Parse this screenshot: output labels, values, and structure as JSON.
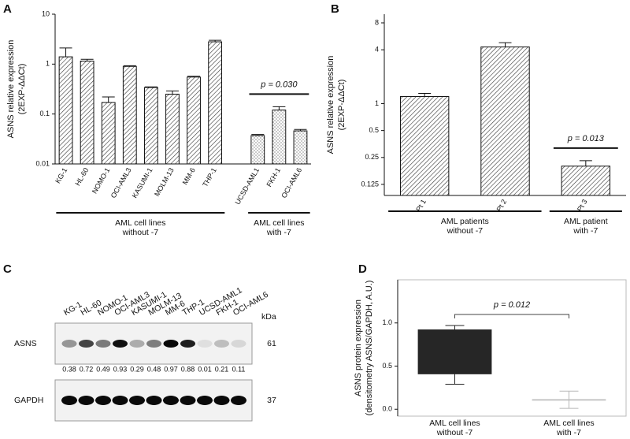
{
  "chart_data": [
    {
      "type": "bar",
      "panel_label": "A",
      "yscale": "log",
      "ylabel": [
        "ASNS relative expression",
        "(2EXP-ΔΔCt)"
      ],
      "categories": [
        "KG-1",
        "HL-60",
        "NOMO-1",
        "OCI-AML3",
        "KASUMI-1",
        "MOLM-13",
        "MM-6",
        "THP-1",
        null,
        "UCSD-AML1",
        "FKH-1",
        "OCI-AML6"
      ],
      "values": [
        1.4,
        1.15,
        0.17,
        0.9,
        0.34,
        0.25,
        0.55,
        2.8,
        null,
        0.037,
        0.12,
        0.046
      ],
      "errors": [
        0.7,
        0.1,
        0.05,
        0.03,
        0.01,
        0.04,
        0.02,
        0.2,
        null,
        0.002,
        0.02,
        0.003
      ],
      "ylim": [
        0.01,
        10
      ],
      "yticks": [
        0.01,
        0.1,
        1,
        10
      ],
      "groups": [
        {
          "label": [
            "AML cell lines",
            "without -7"
          ],
          "span": [
            0,
            7
          ],
          "fill": "hatch"
        },
        {
          "label": [
            "AML cell lines",
            "with -7"
          ],
          "span": [
            9,
            11
          ],
          "fill": "dots"
        }
      ],
      "annotation": {
        "text": "p = 0.030",
        "span": [
          9,
          11
        ]
      }
    },
    {
      "type": "bar",
      "panel_label": "B",
      "yscale": "log",
      "ylabel": [
        "ASNS relative expression",
        "(2EXP-ΔΔCt)"
      ],
      "categories": [
        "Pt 1",
        "Pt 2",
        "Pt 3"
      ],
      "values": [
        1.2,
        4.3,
        0.2
      ],
      "errors": [
        0.1,
        0.5,
        0.03
      ],
      "ylim": [
        0.094,
        10
      ],
      "yticks": [
        0.125,
        0.25,
        0.5,
        1,
        4,
        8
      ],
      "groups": [
        {
          "label": [
            "AML patients",
            "without -7"
          ],
          "span": [
            0,
            1
          ],
          "fill": "hatch"
        },
        {
          "label": [
            "AML patient",
            "with -7"
          ],
          "span": [
            2,
            2
          ],
          "fill": "hatch"
        }
      ],
      "annotation": {
        "text": "p = 0.013",
        "span": [
          2,
          2
        ]
      }
    },
    {
      "type": "box",
      "panel_label": "D",
      "ylabel": [
        "ASNS protein expression",
        "(densitometry ASNS/GAPDH, A.U.)"
      ],
      "categories": [
        [
          "AML cell lines",
          "without -7"
        ],
        [
          "AML cell lines",
          "with -7"
        ]
      ],
      "boxes": [
        {
          "min": 0.29,
          "q1": 0.41,
          "median": 0.605,
          "q3": 0.92,
          "max": 0.97
        },
        {
          "min": 0.01,
          "q1": 0.11,
          "median": 0.11,
          "q3": 0.11,
          "max": 0.21
        }
      ],
      "colors": [
        "#262626",
        "#b8b8b8"
      ],
      "ylim": [
        -0.08,
        1.5
      ],
      "yticks": [
        {
          "value": 0,
          "label": "0.0"
        },
        {
          "value": 0.5,
          "label": "0.5"
        },
        {
          "value": 1,
          "label": "1.0"
        }
      ],
      "annotation": {
        "text": "p = 0.012",
        "span": [
          0,
          1
        ]
      }
    }
  ],
  "blot": {
    "panel_label": "C",
    "unit": "kDa",
    "lanes": [
      "KG-1",
      "HL-60",
      "NOMO-1",
      "OCI-AML3",
      "KASUMI-1",
      "MOLM-13",
      "MM-6",
      "THP-1",
      "UCSD-AML1",
      "FKH-1",
      "OCI-AML6"
    ],
    "rows": [
      {
        "label": "ASNS",
        "kda": 61,
        "densitometry": [
          0.38,
          0.72,
          0.49,
          0.93,
          0.29,
          0.48,
          0.97,
          0.88,
          0.01,
          0.21,
          0.11
        ]
      },
      {
        "label": "GAPDH",
        "kda": 37
      }
    ]
  }
}
